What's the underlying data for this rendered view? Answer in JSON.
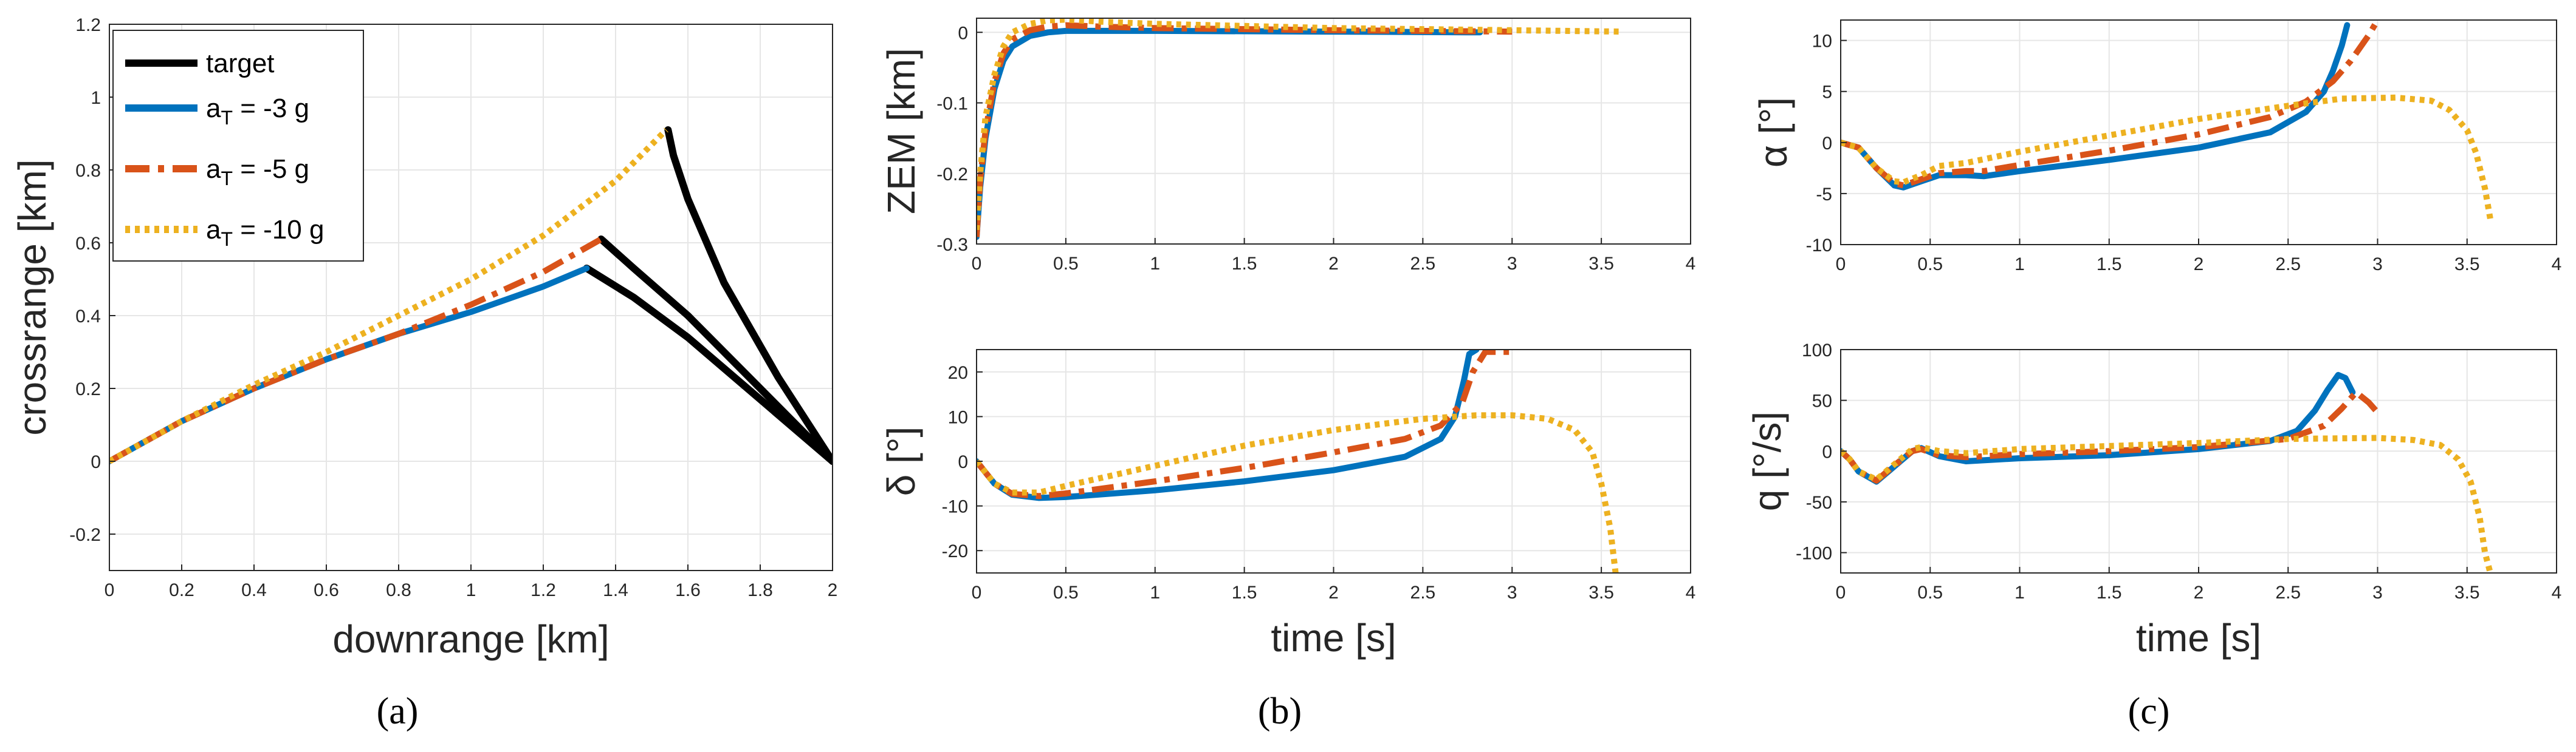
{
  "colors": {
    "target": "#000000",
    "a3": "#0072BD",
    "a5": "#D95319",
    "a10": "#EDB120",
    "grid": "#e6e6e6",
    "axis": "#262626"
  },
  "captions": {
    "a": "(a)",
    "b": "(b)",
    "c": "(c)"
  },
  "legend": {
    "target": "target",
    "a3": {
      "base": "a",
      "sub": "T",
      "rest": " = -3 g"
    },
    "a5": {
      "base": "a",
      "sub": "T",
      "rest": " = -5 g"
    },
    "a10": {
      "base": "a",
      "sub": "T",
      "rest": " = -10 g"
    }
  },
  "chart_data": [
    {
      "id": "traj",
      "type": "line",
      "xlabel": "downrange [km]",
      "ylabel": "crossrange [km]",
      "xlim": [
        0,
        2
      ],
      "ylim": [
        -0.3,
        1.2
      ],
      "xticks": [
        0,
        0.2,
        0.4,
        0.6,
        0.8,
        1,
        1.2,
        1.4,
        1.6,
        1.8,
        2
      ],
      "xtick_labels": [
        "0",
        "0.2",
        "0.4",
        "0.6",
        "0.8",
        "1",
        "1.2",
        "1.4",
        "1.6",
        "1.8",
        "2"
      ],
      "yticks": [
        -0.2,
        0,
        0.2,
        0.4,
        0.6,
        0.8,
        1,
        1.2
      ],
      "ytick_labels": [
        "-0.2",
        "0",
        "0.2",
        "0.4",
        "0.6",
        "0.8",
        "1",
        "1.2"
      ],
      "series": [
        {
          "name": "target",
          "key": "target",
          "x": [
            2.0,
            1.8,
            1.6,
            1.45,
            1.32
          ],
          "y": [
            0.0,
            0.17,
            0.34,
            0.45,
            0.53
          ]
        },
        {
          "name": "target",
          "key": "target",
          "x": [
            2.0,
            1.8,
            1.6,
            1.45,
            1.36
          ],
          "y": [
            0.0,
            0.2,
            0.4,
            0.53,
            0.61
          ]
        },
        {
          "name": "target",
          "key": "target",
          "x": [
            2.0,
            1.85,
            1.7,
            1.6,
            1.56,
            1.545
          ],
          "y": [
            0.0,
            0.23,
            0.49,
            0.72,
            0.84,
            0.91
          ]
        },
        {
          "name": "a_T = -3 g",
          "key": "a3",
          "x": [
            0,
            0.2,
            0.4,
            0.6,
            0.8,
            1.0,
            1.2,
            1.32
          ],
          "y": [
            0,
            0.11,
            0.2,
            0.28,
            0.35,
            0.41,
            0.48,
            0.53
          ]
        },
        {
          "name": "a_T = -5 g",
          "key": "a5",
          "x": [
            0,
            0.2,
            0.4,
            0.6,
            0.8,
            1.0,
            1.2,
            1.36
          ],
          "y": [
            0,
            0.11,
            0.2,
            0.28,
            0.35,
            0.43,
            0.52,
            0.61
          ]
        },
        {
          "name": "a_T = -10 g",
          "key": "a10",
          "x": [
            0,
            0.2,
            0.4,
            0.6,
            0.8,
            1.0,
            1.2,
            1.4,
            1.54
          ],
          "y": [
            0,
            0.11,
            0.21,
            0.3,
            0.4,
            0.5,
            0.62,
            0.77,
            0.91
          ]
        }
      ]
    },
    {
      "id": "zem",
      "type": "line",
      "xlabel": "",
      "ylabel": "ZEM [km]",
      "xlim": [
        0,
        4
      ],
      "ylim": [
        -0.3,
        0.02
      ],
      "xticks": [
        0,
        0.5,
        1,
        1.5,
        2,
        2.5,
        3,
        3.5,
        4
      ],
      "xtick_labels": [
        "0",
        "0.5",
        "1",
        "1.5",
        "2",
        "2.5",
        "3",
        "3.5",
        "4"
      ],
      "yticks": [
        -0.3,
        -0.2,
        -0.1,
        0
      ],
      "ytick_labels": [
        "-0.3",
        "-0.2",
        "-0.1",
        "0"
      ],
      "series": [
        {
          "name": "a_T = -3 g",
          "key": "a3",
          "x": [
            0,
            0.02,
            0.05,
            0.1,
            0.15,
            0.2,
            0.3,
            0.4,
            0.5,
            0.7,
            1,
            2,
            2.82
          ],
          "y": [
            -0.29,
            -0.22,
            -0.15,
            -0.08,
            -0.04,
            -0.02,
            -0.005,
            0,
            0.002,
            0.002,
            0.002,
            0.001,
            0
          ]
        },
        {
          "name": "a_T = -5 g",
          "key": "a5",
          "x": [
            0,
            0.02,
            0.05,
            0.1,
            0.15,
            0.2,
            0.3,
            0.4,
            0.5,
            0.7,
            1,
            2,
            3.0
          ],
          "y": [
            -0.29,
            -0.21,
            -0.14,
            -0.07,
            -0.03,
            -0.01,
            0.003,
            0.008,
            0.01,
            0.008,
            0.006,
            0.003,
            0.001
          ]
        },
        {
          "name": "a_T = -10 g",
          "key": "a10",
          "x": [
            0,
            0.02,
            0.05,
            0.1,
            0.15,
            0.2,
            0.3,
            0.4,
            0.5,
            0.7,
            1,
            2,
            3,
            3.62
          ],
          "y": [
            -0.28,
            -0.2,
            -0.12,
            -0.06,
            -0.02,
            0.0,
            0.012,
            0.017,
            0.018,
            0.015,
            0.012,
            0.006,
            0.003,
            0.001
          ]
        }
      ]
    },
    {
      "id": "delta",
      "type": "line",
      "xlabel": "time [s]",
      "ylabel": "δ [°]",
      "xlim": [
        0,
        4
      ],
      "ylim": [
        -25,
        25
      ],
      "xticks": [
        0,
        0.5,
        1,
        1.5,
        2,
        2.5,
        3,
        3.5,
        4
      ],
      "xtick_labels": [
        "0",
        "0.5",
        "1",
        "1.5",
        "2",
        "2.5",
        "3",
        "3.5",
        "4"
      ],
      "yticks": [
        -20,
        -10,
        0,
        10,
        20
      ],
      "ytick_labels": [
        "-20",
        "-10",
        "0",
        "10",
        "20"
      ],
      "series": [
        {
          "name": "a_T = -3 g",
          "key": "a3",
          "x": [
            0,
            0.1,
            0.2,
            0.35,
            0.5,
            1,
            1.5,
            2,
            2.4,
            2.6,
            2.68,
            2.73,
            2.76,
            2.8
          ],
          "y": [
            0,
            -5,
            -7.5,
            -8.2,
            -8,
            -6.5,
            -4.5,
            -2,
            1,
            5,
            10,
            18,
            24,
            25
          ]
        },
        {
          "name": "a_T = -5 g",
          "key": "a5",
          "x": [
            0,
            0.1,
            0.2,
            0.35,
            0.5,
            1,
            1.5,
            2,
            2.4,
            2.6,
            2.72,
            2.78,
            2.85,
            3.0
          ],
          "y": [
            0,
            -5,
            -7.3,
            -7.8,
            -7.2,
            -4.5,
            -1.5,
            2,
            5,
            8,
            13,
            20,
            24.5,
            24.5
          ]
        },
        {
          "name": "a_T = -10 g",
          "key": "a10",
          "x": [
            0,
            0.1,
            0.2,
            0.35,
            0.5,
            1,
            1.5,
            2,
            2.5,
            2.8,
            3.0,
            3.2,
            3.35,
            3.45,
            3.5,
            3.55,
            3.58
          ],
          "y": [
            0,
            -5,
            -7,
            -7,
            -5.5,
            -1,
            3.5,
            7,
            9.5,
            10.3,
            10.3,
            9.5,
            7,
            2,
            -5,
            -15,
            -25
          ]
        }
      ]
    },
    {
      "id": "alpha",
      "type": "line",
      "xlabel": "",
      "ylabel": "α [°]",
      "xlim": [
        0,
        4
      ],
      "ylim": [
        -10,
        12
      ],
      "xticks": [
        0,
        0.5,
        1,
        1.5,
        2,
        2.5,
        3,
        3.5,
        4
      ],
      "xtick_labels": [
        "0",
        "0.5",
        "1",
        "1.5",
        "2",
        "2.5",
        "3",
        "3.5",
        "4"
      ],
      "yticks": [
        -10,
        -5,
        0,
        5,
        10
      ],
      "ytick_labels": [
        "-10",
        "-5",
        "0",
        "5",
        "10"
      ],
      "series": [
        {
          "name": "a_T = -3 g",
          "key": "a3",
          "x": [
            0,
            0.1,
            0.2,
            0.3,
            0.35,
            0.45,
            0.55,
            0.7,
            0.8,
            1,
            1.5,
            2,
            2.4,
            2.6,
            2.7,
            2.75,
            2.8,
            2.83
          ],
          "y": [
            0,
            -0.5,
            -2.5,
            -4.2,
            -4.4,
            -3.8,
            -3.2,
            -3.2,
            -3.3,
            -2.8,
            -1.7,
            -0.5,
            1,
            3,
            5,
            7,
            9.5,
            11.5
          ]
        },
        {
          "name": "a_T = -5 g",
          "key": "a5",
          "x": [
            0,
            0.1,
            0.2,
            0.3,
            0.35,
            0.45,
            0.55,
            0.7,
            0.8,
            1,
            1.5,
            2,
            2.4,
            2.6,
            2.75,
            2.85,
            2.95,
            3.0
          ],
          "y": [
            0,
            -0.5,
            -2.5,
            -4,
            -4.2,
            -3.6,
            -3,
            -2.8,
            -2.8,
            -2.2,
            -0.8,
            0.8,
            2.5,
            4,
            6,
            8,
            10.5,
            12
          ]
        },
        {
          "name": "a_T = -10 g",
          "key": "a10",
          "x": [
            0,
            0.1,
            0.2,
            0.3,
            0.35,
            0.45,
            0.55,
            0.7,
            1,
            1.5,
            2,
            2.5,
            2.8,
            3.1,
            3.3,
            3.4,
            3.5,
            3.55,
            3.6,
            3.63
          ],
          "y": [
            0,
            -0.5,
            -2.5,
            -3.8,
            -3.9,
            -3.2,
            -2.3,
            -2,
            -0.9,
            0.7,
            2.3,
            3.6,
            4.3,
            4.4,
            4.1,
            3.2,
            1.2,
            -1,
            -4.5,
            -7.5
          ]
        }
      ]
    },
    {
      "id": "q",
      "type": "line",
      "xlabel": "time [s]",
      "ylabel": "q [°/s]",
      "xlim": [
        0,
        4
      ],
      "ylim": [
        -120,
        100
      ],
      "xticks": [
        0,
        0.5,
        1,
        1.5,
        2,
        2.5,
        3,
        3.5,
        4
      ],
      "xtick_labels": [
        "0",
        "0.5",
        "1",
        "1.5",
        "2",
        "2.5",
        "3",
        "3.5",
        "4"
      ],
      "yticks": [
        -100,
        -50,
        0,
        50,
        100
      ],
      "ytick_labels": [
        "-100",
        "-50",
        "0",
        "50",
        "100"
      ],
      "series": [
        {
          "name": "a_T = -3 g",
          "key": "a3",
          "x": [
            0,
            0.05,
            0.1,
            0.2,
            0.3,
            0.4,
            0.45,
            0.55,
            0.7,
            1,
            1.5,
            2,
            2.4,
            2.55,
            2.65,
            2.72,
            2.78,
            2.82,
            2.86
          ],
          "y": [
            0,
            -8,
            -20,
            -30,
            -15,
            0,
            3,
            -5,
            -10,
            -7,
            -4,
            2,
            10,
            20,
            40,
            60,
            75,
            72,
            58
          ]
        },
        {
          "name": "a_T = -5 g",
          "key": "a5",
          "x": [
            0,
            0.05,
            0.1,
            0.2,
            0.3,
            0.4,
            0.45,
            0.55,
            0.7,
            1,
            1.5,
            2,
            2.5,
            2.7,
            2.8,
            2.88,
            2.95,
            3.0
          ],
          "y": [
            0,
            -8,
            -20,
            -29,
            -14,
            0,
            2,
            -4,
            -6,
            -3,
            0,
            4,
            12,
            25,
            42,
            58,
            48,
            38
          ]
        },
        {
          "name": "a_T = -10 g",
          "key": "a10",
          "x": [
            0,
            0.05,
            0.1,
            0.2,
            0.3,
            0.4,
            0.45,
            0.55,
            0.7,
            1,
            1.5,
            2,
            2.5,
            3,
            3.2,
            3.35,
            3.45,
            3.52,
            3.57,
            3.6,
            3.63
          ],
          "y": [
            0,
            -8,
            -20,
            -28,
            -13,
            2,
            4,
            0,
            -2,
            2,
            5,
            8,
            12,
            13,
            11,
            6,
            -8,
            -30,
            -65,
            -100,
            -120
          ]
        }
      ]
    }
  ]
}
